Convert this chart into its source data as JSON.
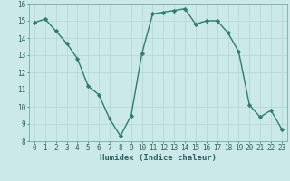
{
  "x": [
    0,
    1,
    2,
    3,
    4,
    5,
    6,
    7,
    8,
    9,
    10,
    11,
    12,
    13,
    14,
    15,
    16,
    17,
    18,
    19,
    20,
    21,
    22,
    23
  ],
  "y": [
    14.9,
    15.1,
    14.4,
    13.7,
    12.8,
    11.2,
    10.7,
    9.3,
    8.3,
    9.5,
    13.1,
    15.4,
    15.5,
    15.6,
    15.7,
    14.8,
    15.0,
    15.0,
    14.3,
    13.2,
    10.1,
    9.4,
    9.8,
    8.7
  ],
  "line_color": "#2e7d6e",
  "marker": "D",
  "marker_size": 2.2,
  "bg_color": "#cce9e9",
  "grid_color": "#b8d8d8",
  "xlabel": "Humidex (Indice chaleur)",
  "ylim": [
    8,
    16
  ],
  "xlim": [
    -0.5,
    23.5
  ],
  "yticks": [
    8,
    9,
    10,
    11,
    12,
    13,
    14,
    15,
    16
  ],
  "xticks": [
    0,
    1,
    2,
    3,
    4,
    5,
    6,
    7,
    8,
    9,
    10,
    11,
    12,
    13,
    14,
    15,
    16,
    17,
    18,
    19,
    20,
    21,
    22,
    23
  ],
  "tick_color": "#2e6060",
  "xlabel_fontsize": 6.5,
  "tick_fontsize": 5.5
}
